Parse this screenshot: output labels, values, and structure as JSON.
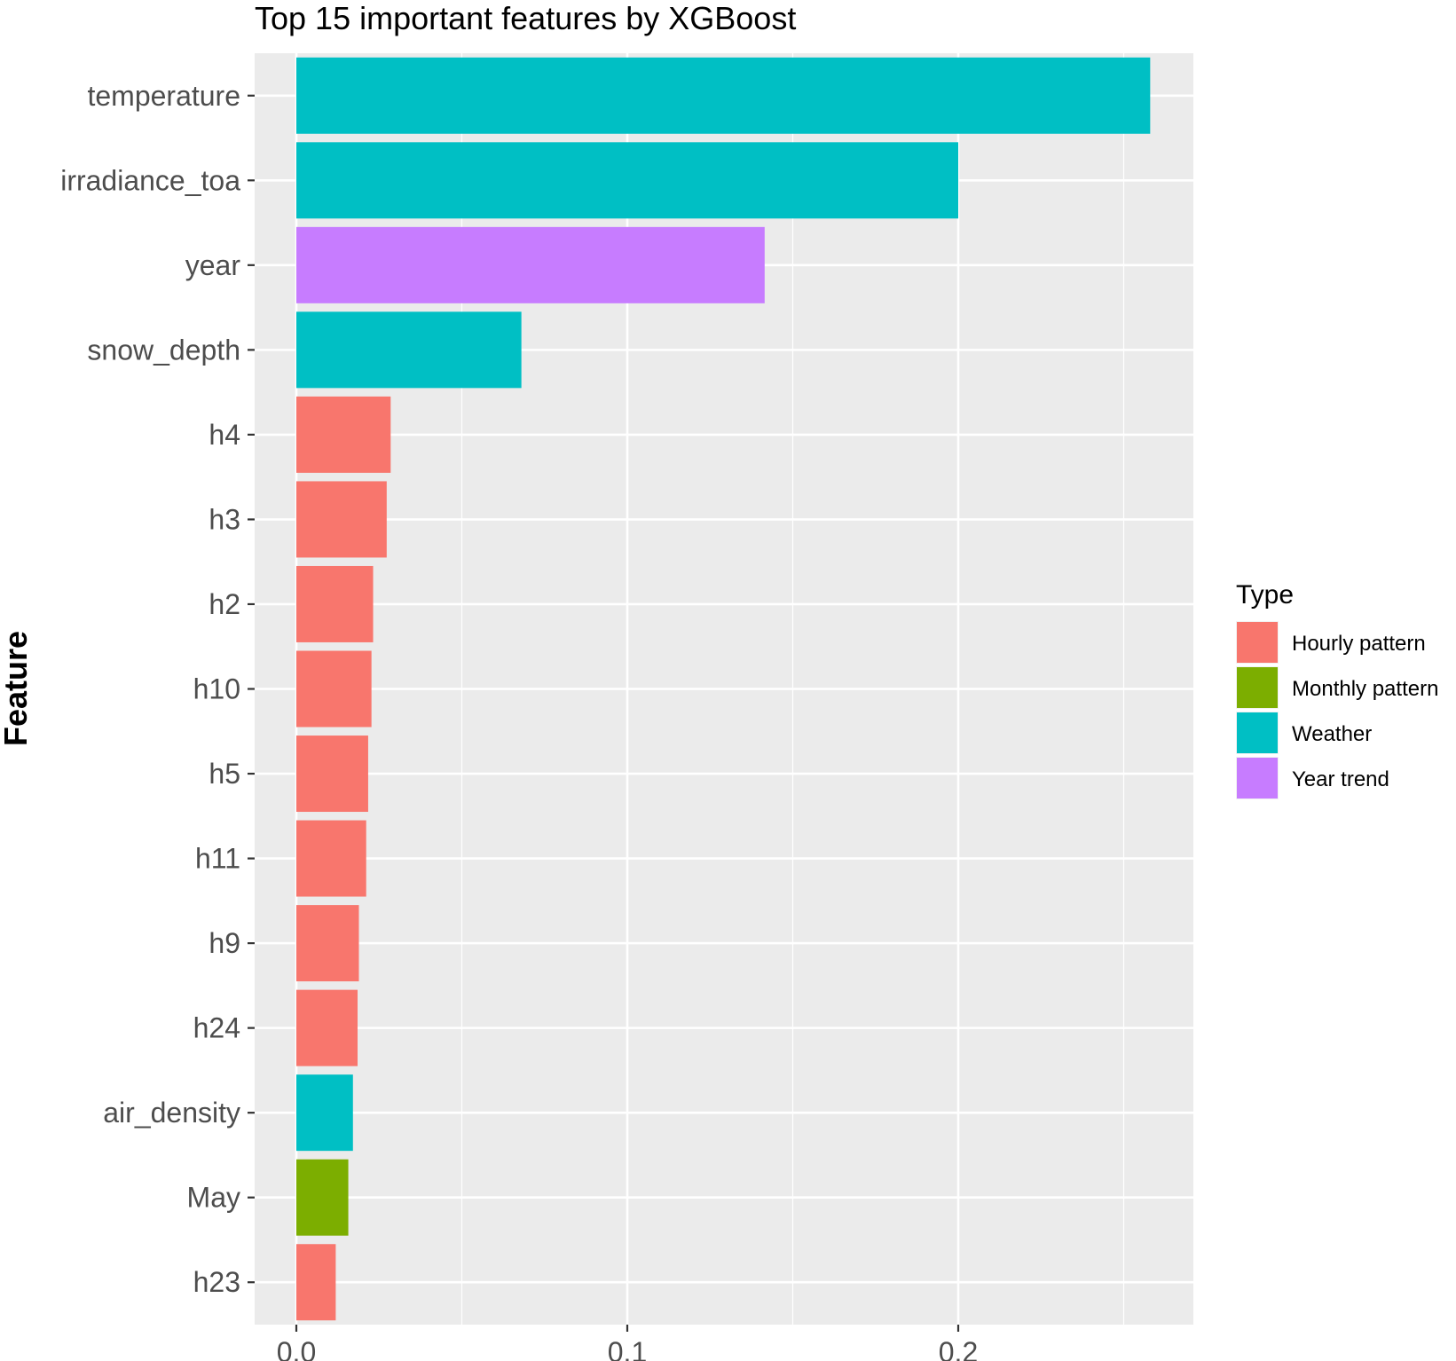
{
  "chart_data": {
    "type": "bar",
    "orientation": "horizontal",
    "title": "Top 15 important features by XGBoost",
    "ylabel": "Feature",
    "xlabel": "",
    "xlim": [
      0,
      0.27
    ],
    "x_ticks": [
      0.0,
      0.1,
      0.2
    ],
    "x_tick_labels": [
      "0.0",
      "0.1",
      "0.2"
    ],
    "grid": true,
    "legend": {
      "title": "Type",
      "position": "right",
      "entries": [
        {
          "name": "Hourly pattern",
          "color": "#F8766D"
        },
        {
          "name": "Monthly pattern",
          "color": "#7CAE00"
        },
        {
          "name": "Weather",
          "color": "#00BFC4"
        },
        {
          "name": "Year trend",
          "color": "#C77CFF"
        }
      ]
    },
    "categories": [
      "temperature",
      "irradiance_toa",
      "year",
      "snow_depth",
      "h4",
      "h3",
      "h2",
      "h10",
      "h5",
      "h11",
      "h9",
      "h24",
      "air_density",
      "May",
      "h23"
    ],
    "values": [
      0.258,
      0.2,
      0.1415,
      0.068,
      0.0285,
      0.0273,
      0.0232,
      0.0227,
      0.0217,
      0.0211,
      0.0189,
      0.0185,
      0.0171,
      0.0157,
      0.0119
    ],
    "types": [
      "Weather",
      "Weather",
      "Year trend",
      "Weather",
      "Hourly pattern",
      "Hourly pattern",
      "Hourly pattern",
      "Hourly pattern",
      "Hourly pattern",
      "Hourly pattern",
      "Hourly pattern",
      "Hourly pattern",
      "Weather",
      "Monthly pattern",
      "Hourly pattern"
    ]
  }
}
